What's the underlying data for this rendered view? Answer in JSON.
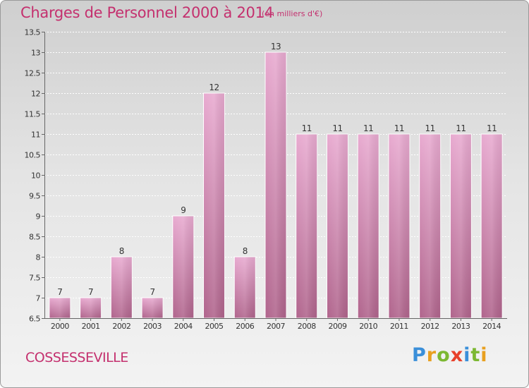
{
  "title": "Charges de Personnel 2000 à 2014",
  "unit_note": "(en milliers d'€)",
  "commune": "COSSESSEVILLE",
  "logo": {
    "text": "Proxiti",
    "letter_colors": [
      "#3a8fd9",
      "#e8a020",
      "#7cb832",
      "#e8402a",
      "#3a8fd9",
      "#7cb832",
      "#e8a020"
    ]
  },
  "colors": {
    "accent": "#c4306e",
    "bar_top": "#e8aad0",
    "bar_bottom": "#b0648c"
  },
  "chart_data": {
    "type": "bar",
    "title": "Charges de Personnel 2000 à 2014",
    "subtitle": "(en milliers d'€)",
    "categories": [
      "2000",
      "2001",
      "2002",
      "2003",
      "2004",
      "2005",
      "2006",
      "2007",
      "2008",
      "2009",
      "2010",
      "2011",
      "2012",
      "2013",
      "2014"
    ],
    "values": [
      7,
      7,
      8,
      7,
      9,
      12,
      8,
      13,
      11,
      11,
      11,
      11,
      11,
      11,
      11
    ],
    "value_labels": [
      "7",
      "7",
      "8",
      "7",
      "9",
      "12",
      "8",
      "13",
      "11",
      "11",
      "11",
      "11",
      "11",
      "11",
      "11"
    ],
    "ylim": [
      6.5,
      13.5
    ],
    "yticks": [
      6.5,
      7,
      7.5,
      8,
      8.5,
      9,
      9.5,
      10,
      10.5,
      11,
      11.5,
      12,
      12.5,
      13,
      13.5
    ],
    "ytick_labels": [
      "6.5",
      "7",
      "7.5",
      "8",
      "8.5",
      "9",
      "9.5",
      "10",
      "10.5",
      "11",
      "11.5",
      "12",
      "12.5",
      "13",
      "13.5"
    ],
    "grid": true,
    "xlabel": "",
    "ylabel": ""
  }
}
